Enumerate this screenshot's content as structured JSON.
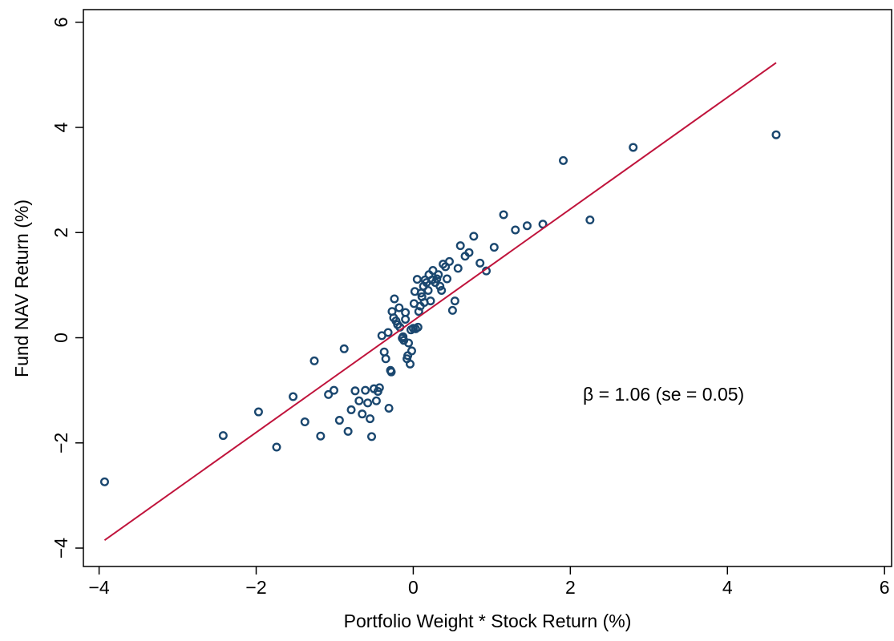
{
  "chart_data": {
    "type": "scatter",
    "x_label": "Portfolio Weight * Stock Return (%)",
    "y_label": "Fund NAV Return (%)",
    "annotation": "β = 1.06 (se = 0.05)",
    "xlim": [
      -4.2,
      6.09
    ],
    "ylim": [
      -4.35,
      6.24
    ],
    "xticks": [
      {
        "value": -4,
        "label": "−4"
      },
      {
        "value": -2,
        "label": "−2"
      },
      0,
      2,
      4,
      6
    ],
    "yticks": [
      {
        "value": -4,
        "label": "−4"
      },
      {
        "value": -2,
        "label": "−2"
      },
      0,
      2,
      4,
      6
    ],
    "series": [
      {
        "type": "scatter",
        "color": "#1a476f",
        "x": [
          -3.93,
          -2.42,
          -1.97,
          -1.74,
          -1.53,
          -1.38,
          -1.26,
          -1.18,
          -1.08,
          -1.01,
          -0.94,
          -0.88,
          -0.83,
          -0.79,
          -0.74,
          -0.69,
          -0.65,
          -0.61,
          -0.58,
          -0.55,
          -0.53,
          -0.5,
          -0.47,
          -0.45,
          -0.43,
          -0.4,
          -0.37,
          -0.35,
          -0.32,
          -0.31,
          -0.29,
          -0.28,
          -0.27,
          -0.25,
          -0.24,
          -0.22,
          -0.2,
          -0.18,
          -0.17,
          -0.14,
          -0.13,
          -0.12,
          -0.1,
          -0.1,
          -0.08,
          -0.07,
          -0.06,
          -0.04,
          -0.03,
          -0.02,
          0.0,
          0.01,
          0.02,
          0.03,
          0.05,
          0.06,
          0.07,
          0.09,
          0.1,
          0.11,
          0.13,
          0.14,
          0.15,
          0.17,
          0.19,
          0.2,
          0.22,
          0.24,
          0.25,
          0.28,
          0.3,
          0.32,
          0.34,
          0.36,
          0.38,
          0.41,
          0.43,
          0.46,
          0.5,
          0.53,
          0.57,
          0.6,
          0.66,
          0.71,
          0.77,
          0.85,
          0.93,
          1.03,
          1.15,
          1.3,
          1.45,
          1.65,
          1.91,
          2.25,
          2.8,
          4.62
        ],
        "values": [
          -2.74,
          -1.86,
          -1.41,
          -2.08,
          -1.12,
          -1.6,
          -0.44,
          -1.87,
          -1.08,
          -1.0,
          -1.57,
          -0.21,
          -1.78,
          -1.37,
          -1.01,
          -1.2,
          -1.45,
          -1.0,
          -1.24,
          -1.54,
          -1.88,
          -0.97,
          -1.2,
          -1.02,
          -0.95,
          0.04,
          -0.27,
          -0.4,
          0.1,
          -1.34,
          -0.62,
          -0.65,
          0.5,
          0.38,
          0.74,
          0.32,
          0.25,
          0.57,
          0.2,
          -0.01,
          0.02,
          -0.05,
          0.35,
          0.48,
          -0.4,
          -0.34,
          -0.1,
          -0.5,
          0.15,
          -0.25,
          0.18,
          0.65,
          0.88,
          0.17,
          1.11,
          0.2,
          0.5,
          0.6,
          0.85,
          0.78,
          0.98,
          0.67,
          1.1,
          1.05,
          0.9,
          1.2,
          0.7,
          1.1,
          1.28,
          1.05,
          1.12,
          1.2,
          0.98,
          0.9,
          1.4,
          1.35,
          1.12,
          1.45,
          0.52,
          0.7,
          1.32,
          1.75,
          1.55,
          1.62,
          1.93,
          1.42,
          1.27,
          1.72,
          2.34,
          2.05,
          2.13,
          2.16,
          3.37,
          2.24,
          3.62,
          3.86
        ]
      },
      {
        "type": "line",
        "color": "#c0143c",
        "x": [
          -3.93,
          4.62
        ],
        "values": [
          -3.85,
          5.23
        ]
      }
    ]
  }
}
